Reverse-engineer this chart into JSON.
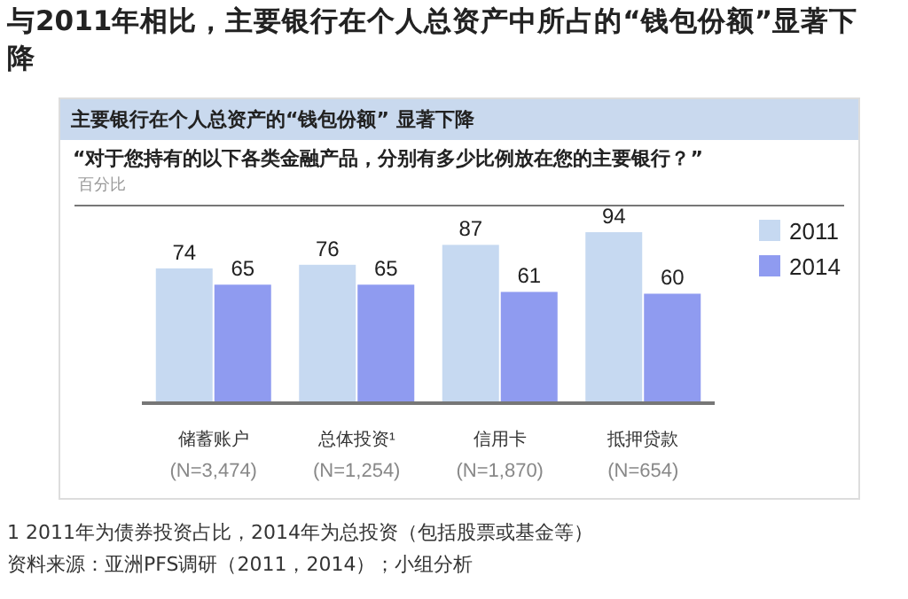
{
  "chart_data": {
    "type": "bar",
    "title": "与2011年相比，主要银行在个人总资产中所占的“钱包份额”显著下降",
    "subtitle": "主要银行在个人总资产的“钱包份额” 显著下降",
    "ylabel": "百分比",
    "annotations": [
      "“对于您持有的以下各类金融产品，分别有多少比例放在您的主要银行？”",
      "1 2011年为债券投资占比，2014年为总投资（包括股票或基金等）",
      "资料来源：亚洲PFS调研（2011，2014）；小组分析"
    ],
    "categories": [
      "储蓄账户\n(N=3,474)",
      "总体投资¹\n(N=1,254)",
      "信用卡\n(N=1,870)",
      "抵押贷款\n(N=654)"
    ],
    "series": [
      {
        "name": "2011",
        "color": "#c6d9f1",
        "values": [
          74,
          76,
          87,
          94
        ]
      },
      {
        "name": "2014",
        "color": "#8f9bf0",
        "values": [
          65,
          65,
          61,
          60
        ]
      }
    ],
    "data_labels": true,
    "legend": "top right"
  }
}
